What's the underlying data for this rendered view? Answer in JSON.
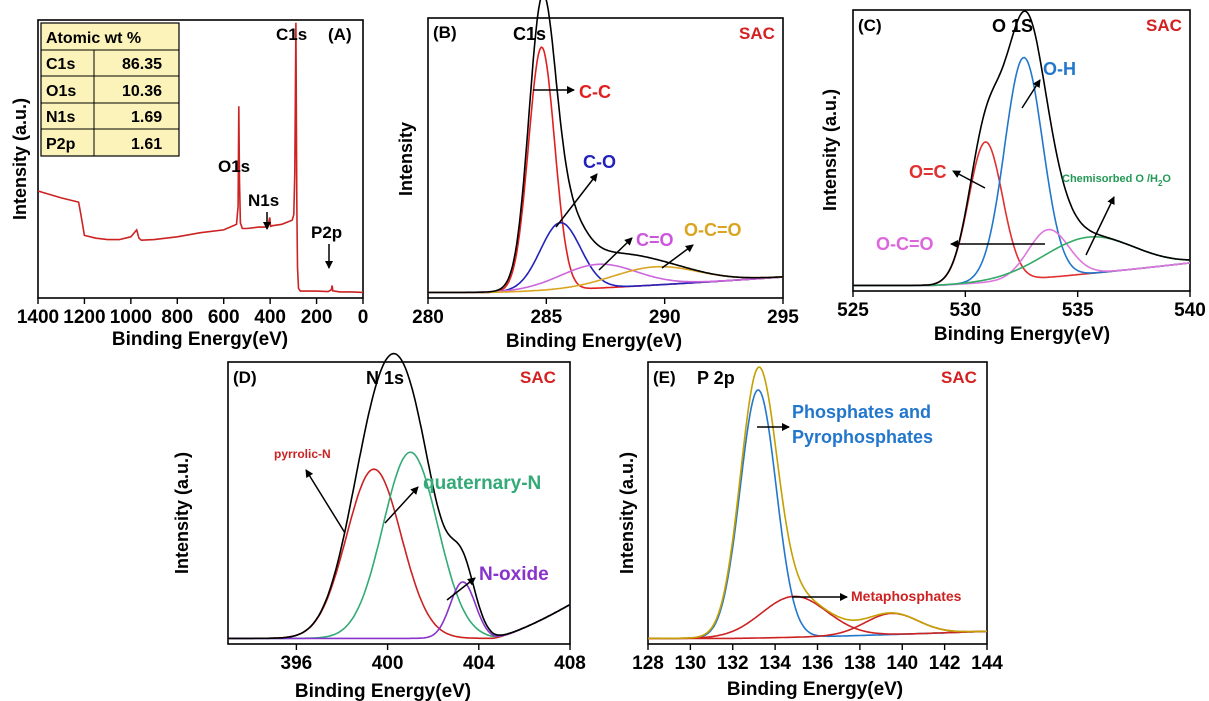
{
  "chart_data": [
    {
      "type": "line",
      "panel_label": "(A)",
      "xlabel": "Binding Energy(eV)",
      "ylabel": "Intensity (a.u.)",
      "xlim": [
        1400,
        0
      ],
      "x_ticks": [
        1400,
        1200,
        1000,
        800,
        600,
        400,
        200,
        0
      ],
      "x_tick_labels": [
        "1400",
        "1200",
        "1000",
        "800",
        "600",
        "400",
        "200",
        "0"
      ],
      "series": [
        {
          "color": "#cc2222",
          "x": [
            1400,
            1300,
            1225,
            1215,
            1200,
            1150,
            1100,
            1050,
            1000,
            985,
            975,
            965,
            955,
            900,
            800,
            700,
            600,
            545,
            538,
            535,
            532,
            528,
            520,
            500,
            450,
            410,
            402,
            398,
            390,
            350,
            305,
            298,
            294,
            289,
            285,
            282,
            278,
            270,
            250,
            200,
            150,
            136,
            133,
            130,
            100,
            50,
            0
          ],
          "y": [
            0.385,
            0.36,
            0.345,
            0.3,
            0.225,
            0.215,
            0.21,
            0.21,
            0.22,
            0.235,
            0.245,
            0.215,
            0.208,
            0.21,
            0.22,
            0.235,
            0.245,
            0.265,
            0.33,
            0.69,
            0.42,
            0.27,
            0.25,
            0.25,
            0.255,
            0.255,
            0.29,
            0.258,
            0.26,
            0.265,
            0.28,
            0.3,
            0.45,
            0.99,
            0.35,
            0.11,
            0.035,
            0.025,
            0.025,
            0.025,
            0.023,
            0.03,
            0.045,
            0.026,
            0.022,
            0.022,
            0.02
          ]
        }
      ],
      "annotations": [
        {
          "text": "C1s",
          "x": 285
        },
        {
          "text": "O1s",
          "x": 532
        },
        {
          "text": "N1s",
          "x": 400
        },
        {
          "text": "P2p",
          "x": 133
        }
      ],
      "table": {
        "header": "Atomic wt %",
        "rows": [
          [
            "C1s",
            "86.35"
          ],
          [
            "O1s",
            "10.36"
          ],
          [
            "N1s",
            "1.69"
          ],
          [
            "P2p",
            "1.61"
          ]
        ]
      }
    },
    {
      "type": "line",
      "panel_label": "(B)",
      "title": "C1s",
      "tag": "SAC",
      "xlabel": "Binding Energy(eV)",
      "ylabel": "Intensity",
      "xlim": [
        280,
        295
      ],
      "x_ticks": [
        280,
        285,
        290,
        295
      ],
      "x_tick_labels": [
        "280",
        "285",
        "290",
        "295"
      ],
      "background": {
        "x0": 282.5,
        "base": 0.02,
        "x_end": 295,
        "y_end": 0.075
      },
      "envelope": {
        "color": "#000000"
      },
      "components": [
        {
          "name": "C-C",
          "color": "#e02020",
          "center": 284.8,
          "amp": 0.87,
          "sigma": 0.55
        },
        {
          "name": "C-O",
          "color": "#2222bb",
          "center": 285.6,
          "amp": 0.24,
          "sigma": 0.85
        },
        {
          "name": "C=O",
          "color": "#cc66dd",
          "center": 287.2,
          "amp": 0.085,
          "sigma": 1.6
        },
        {
          "name": "O-C=O",
          "color": "#d9a520",
          "center": 289.6,
          "amp": 0.065,
          "sigma": 1.8
        }
      ]
    },
    {
      "type": "line",
      "panel_label": "(C)",
      "title": "O 1S",
      "tag": "SAC",
      "xlabel": "Binding Energy(eV)",
      "ylabel": "Intensity (a.u.)",
      "xlim": [
        525,
        540
      ],
      "x_ticks": [
        525,
        530,
        535,
        540
      ],
      "x_tick_labels": [
        "525",
        "530",
        "535",
        "540"
      ],
      "background": {
        "x0": 528.5,
        "base": 0.02,
        "x_end": 540,
        "y_end": 0.1
      },
      "envelope": {
        "color": "#000000"
      },
      "components": [
        {
          "name": "O=C",
          "color": "#e03030",
          "center": 530.9,
          "amp": 0.5,
          "sigma": 0.75
        },
        {
          "name": "O-H",
          "color": "#2277cc",
          "center": 532.6,
          "amp": 0.79,
          "sigma": 0.85
        },
        {
          "name": "O-C=O",
          "color": "#dd77dd",
          "center": 533.7,
          "amp": 0.17,
          "sigma": 0.9
        },
        {
          "name": "Chemisorbed O /H2O",
          "color": "#33aa66",
          "center": 535.5,
          "amp": 0.13,
          "sigma": 2.0
        }
      ]
    },
    {
      "type": "line",
      "panel_label": "(D)",
      "title": "N 1s",
      "tag": "SAC",
      "xlabel": "Binding Energy(eV)",
      "ylabel": "Intensity (a.u.)",
      "xlim": [
        393,
        408
      ],
      "x_ticks": [
        396,
        400,
        404,
        408
      ],
      "x_tick_labels": [
        "396",
        "400",
        "404",
        "408"
      ],
      "background": {
        "x0": 404.6,
        "base": 0.02,
        "x_end": 408,
        "y_end": 0.14
      },
      "envelope": {
        "color": "#000000"
      },
      "components": [
        {
          "name": "pyrrolic-N",
          "color": "#cc2222",
          "center": 399.4,
          "amp": 0.6,
          "sigma": 1.2
        },
        {
          "name": "quaternary-N",
          "color": "#33aa77",
          "center": 401.0,
          "amp": 0.66,
          "sigma": 1.2
        },
        {
          "name": "N-oxide",
          "color": "#8833cc",
          "center": 403.3,
          "amp": 0.2,
          "sigma": 0.55
        }
      ]
    },
    {
      "type": "line",
      "panel_label": "(E)",
      "title": "P 2p",
      "tag": "SAC",
      "xlabel": "Binding Energy(eV)",
      "ylabel": "Intensity (a.u.)",
      "xlim": [
        128,
        144
      ],
      "x_ticks": [
        128,
        130,
        132,
        134,
        136,
        138,
        140,
        142,
        144
      ],
      "x_tick_labels": [
        "128",
        "130",
        "132",
        "134",
        "136",
        "138",
        "140",
        "142",
        "144"
      ],
      "background": {
        "x0": 132,
        "base": 0.02,
        "x_end": 144,
        "y_end": 0.045
      },
      "envelope": {
        "color": "#c4a000"
      },
      "components": [
        {
          "name": "Phosphates and Pyrophosphates",
          "color": "#2277cc",
          "center": 133.2,
          "amp": 0.88,
          "sigma": 0.85
        },
        {
          "name": "Metaphosphates",
          "color": "#cc2222",
          "center": 134.9,
          "amp": 0.145,
          "sigma": 1.55
        },
        {
          "name": "",
          "color": "#cc2222",
          "center": 139.5,
          "amp": 0.075,
          "sigma": 1.25
        }
      ]
    }
  ],
  "labels": {
    "annot_B": [
      "C-C",
      "C-O",
      "C=O",
      "O-C=O"
    ],
    "annot_C": [
      "O=C",
      "O-H",
      "O-C=O"
    ],
    "annot_C_chem_main": "Chemisorbed O /H",
    "annot_C_chem_sub": "2",
    "annot_C_chem_end": "O",
    "annot_D": [
      "pyrrolic-N",
      "quaternary-N",
      "N-oxide"
    ],
    "annot_E1": "Phosphates and",
    "annot_E2": "Pyrophosphates",
    "annot_E3": "Metaphosphates"
  }
}
